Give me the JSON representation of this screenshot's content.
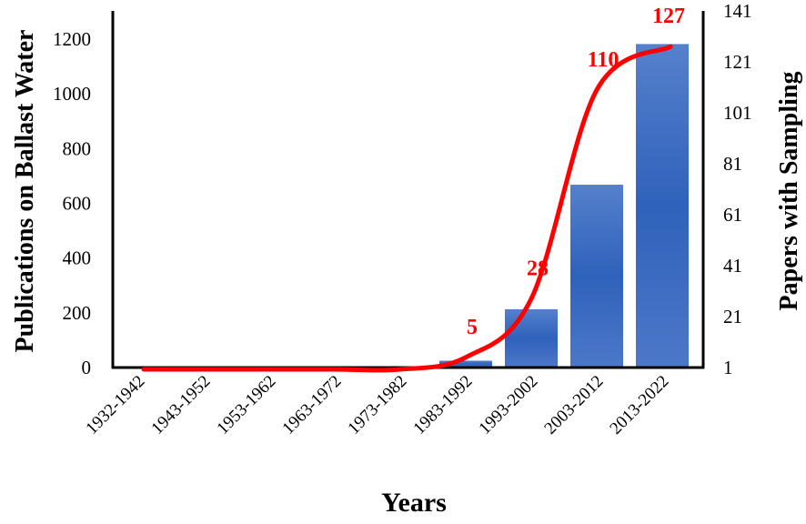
{
  "chart_data": {
    "type": "bar+line",
    "xlabel": "Years",
    "ylabel_left": "Publications on Ballast Water",
    "ylabel_right": "Papers with Sampling",
    "categories": [
      "1932-1942",
      "1943-1952",
      "1953-1962",
      "1963-1972",
      "1973-1982",
      "1983-1992",
      "1993-2002",
      "2003-2012",
      "2013-2022"
    ],
    "bar_series": {
      "values": [
        5,
        0,
        0,
        0,
        0,
        25,
        213,
        668,
        1182
      ],
      "color": "#3f6bc4"
    },
    "line_series": {
      "values": [
        1,
        1,
        1,
        1,
        1,
        5,
        28,
        110,
        127
      ],
      "color": "#ff0000",
      "smooth": true
    },
    "data_labels": [
      {
        "index": 5,
        "text": "5"
      },
      {
        "index": 6,
        "text": "28"
      },
      {
        "index": 7,
        "text": "110"
      },
      {
        "index": 8,
        "text": "127"
      }
    ],
    "ylim_left": [
      0,
      1200
    ],
    "yticks_left": [
      "0",
      "200",
      "400",
      "600",
      "800",
      "1000",
      "1200"
    ],
    "ylim_right": [
      1,
      141
    ],
    "yticks_right": [
      "1",
      "21",
      "41",
      "61",
      "81",
      "101",
      "121",
      "141"
    ],
    "grid": false,
    "legend": "none"
  }
}
